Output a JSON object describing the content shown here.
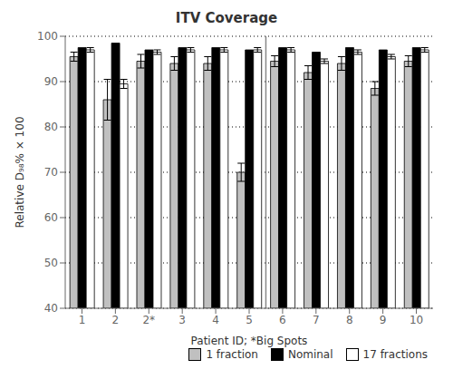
{
  "chart_data": {
    "type": "bar",
    "title": "ITV Coverage",
    "x_label": "Patient ID; *Big Spots",
    "y_label": "Relative D₉₈% × 100",
    "categories": [
      "1",
      "2",
      "2*",
      "3",
      "4",
      "5",
      "6",
      "7",
      "8",
      "9",
      "10"
    ],
    "series": [
      {
        "name": "1 fraction",
        "color": "#c0c0c0",
        "values": [
          95.5,
          86.0,
          94.5,
          94.0,
          94.0,
          70.0,
          94.5,
          92.0,
          94.0,
          88.5,
          94.5
        ],
        "errors": [
          1.0,
          4.5,
          1.5,
          1.5,
          1.5,
          2.0,
          1.2,
          1.5,
          1.5,
          1.5,
          1.2
        ]
      },
      {
        "name": "Nominal",
        "color": "#000000",
        "values": [
          97.5,
          98.5,
          97.0,
          97.5,
          97.5,
          97.0,
          97.5,
          96.5,
          97.5,
          97.0,
          97.5
        ]
      },
      {
        "name": "17 fractions",
        "color": "#ffffff",
        "values": [
          97.0,
          89.5,
          96.5,
          97.0,
          97.0,
          97.0,
          97.0,
          94.5,
          96.5,
          95.5,
          97.0
        ],
        "errors": [
          0.5,
          1.0,
          0.5,
          0.5,
          0.5,
          0.5,
          0.5,
          0.5,
          0.5,
          0.5,
          0.5
        ]
      }
    ],
    "separator_between": [
      "5",
      "6"
    ],
    "ylim": [
      40,
      100
    ],
    "yticks": [
      40,
      50,
      60,
      70,
      80,
      90,
      100
    ],
    "grid": true,
    "legend": "lower right"
  }
}
